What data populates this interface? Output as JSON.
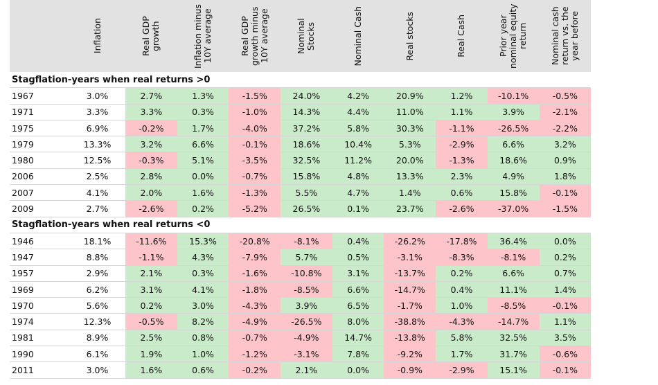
{
  "table": {
    "headers": [
      "Inflation",
      "Real GDP growth",
      "Inflation minus 10Y average",
      "Real GDP growth minus 10Y average",
      "Nominal Stocks",
      "Nominal Cash",
      "Real stocks",
      "Real Cash",
      "Prior year nominal equity return",
      "Nominal cash return vs. the year before"
    ],
    "sections": [
      {
        "title": "Stagflation-years when real returns >0",
        "rows": [
          [
            "1967",
            "3.0%",
            "2.7%",
            "1.3%",
            "-1.5%",
            "24.0%",
            "4.2%",
            "20.9%",
            "1.2%",
            "-10.1%",
            "-0.5%"
          ],
          [
            "1971",
            "3.3%",
            "3.3%",
            "0.3%",
            "-1.0%",
            "14.3%",
            "4.4%",
            "11.0%",
            "1.1%",
            "3.9%",
            "-2.1%"
          ],
          [
            "1975",
            "6.9%",
            "-0.2%",
            "1.7%",
            "-4.0%",
            "37.2%",
            "5.8%",
            "30.3%",
            "-1.1%",
            "-26.5%",
            "-2.2%"
          ],
          [
            "1979",
            "13.3%",
            "3.2%",
            "6.6%",
            "-0.1%",
            "18.6%",
            "10.4%",
            "5.3%",
            "-2.9%",
            "6.6%",
            "3.2%"
          ],
          [
            "1980",
            "12.5%",
            "-0.3%",
            "5.1%",
            "-3.5%",
            "32.5%",
            "11.2%",
            "20.0%",
            "-1.3%",
            "18.6%",
            "0.9%"
          ],
          [
            "2006",
            "2.5%",
            "2.8%",
            "0.0%",
            "-0.7%",
            "15.8%",
            "4.8%",
            "13.3%",
            "2.3%",
            "4.9%",
            "1.8%"
          ],
          [
            "2007",
            "4.1%",
            "2.0%",
            "1.6%",
            "-1.3%",
            "5.5%",
            "4.7%",
            "1.4%",
            "0.6%",
            "15.8%",
            "-0.1%"
          ],
          [
            "2009",
            "2.7%",
            "-2.6%",
            "0.2%",
            "-5.2%",
            "26.5%",
            "0.1%",
            "23.7%",
            "-2.6%",
            "-37.0%",
            "-1.5%"
          ]
        ]
      },
      {
        "title": "Stagflation-years when real returns <0",
        "rows": [
          [
            "1946",
            "18.1%",
            "-11.6%",
            "15.3%",
            "-20.8%",
            "-8.1%",
            "0.4%",
            "-26.2%",
            "-17.8%",
            "36.4%",
            "0.0%"
          ],
          [
            "1947",
            "8.8%",
            "-1.1%",
            "4.3%",
            "-7.9%",
            "5.7%",
            "0.5%",
            "-3.1%",
            "-8.3%",
            "-8.1%",
            "0.2%"
          ],
          [
            "1957",
            "2.9%",
            "2.1%",
            "0.3%",
            "-1.6%",
            "-10.8%",
            "3.1%",
            "-13.7%",
            "0.2%",
            "6.6%",
            "0.7%"
          ],
          [
            "1969",
            "6.2%",
            "3.1%",
            "4.1%",
            "-1.8%",
            "-8.5%",
            "6.6%",
            "-14.7%",
            "0.4%",
            "11.1%",
            "1.4%"
          ],
          [
            "1970",
            "5.6%",
            "0.2%",
            "3.0%",
            "-4.3%",
            "3.9%",
            "6.5%",
            "-1.7%",
            "1.0%",
            "-8.5%",
            "-0.1%"
          ],
          [
            "1974",
            "12.3%",
            "-0.5%",
            "8.2%",
            "-4.9%",
            "-26.5%",
            "8.0%",
            "-38.8%",
            "-4.3%",
            "-14.7%",
            "1.1%"
          ],
          [
            "1981",
            "8.9%",
            "2.5%",
            "0.8%",
            "-0.7%",
            "-4.9%",
            "14.7%",
            "-13.8%",
            "5.8%",
            "32.5%",
            "3.5%"
          ],
          [
            "1990",
            "6.1%",
            "1.9%",
            "1.0%",
            "-1.2%",
            "-3.1%",
            "7.8%",
            "-9.2%",
            "1.7%",
            "31.7%",
            "-0.6%"
          ],
          [
            "2011",
            "3.0%",
            "1.6%",
            "0.6%",
            "-0.2%",
            "2.1%",
            "0.0%",
            "-0.9%",
            "-2.9%",
            "15.1%",
            "-0.1%"
          ]
        ]
      }
    ]
  }
}
